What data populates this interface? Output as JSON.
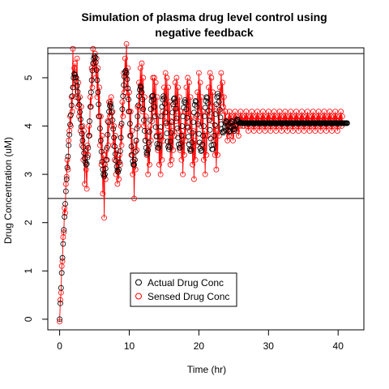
{
  "chart_data": {
    "type": "scatter",
    "title_line1": "Simulation of plasma drug level control using",
    "title_line2": "negative feedback",
    "xlabel": "Time (hr)",
    "ylabel": "Drug Concentration (uM)",
    "xlim": [
      -1.7,
      43.7
    ],
    "ylim": [
      -0.22,
      5.62
    ],
    "x_ticks": [
      0,
      10,
      20,
      30,
      40
    ],
    "y_ticks": [
      0,
      1,
      2,
      3,
      4,
      5
    ],
    "hlines": [
      2.5,
      5.5
    ],
    "legend": {
      "placement": "bottom-center",
      "entries": [
        "Actual Drug Conc",
        "Sensed Drug Conc"
      ]
    },
    "colors": {
      "actual": "#000000",
      "sensed": "#ff0000"
    },
    "series": [
      {
        "name": "Actual Drug Conc",
        "style": "points",
        "x_start": 0,
        "x_step": 0.1,
        "values": [
          0.0,
          0.33,
          0.65,
          0.96,
          1.27,
          1.56,
          1.85,
          2.12,
          2.39,
          2.65,
          2.9,
          3.14,
          3.37,
          3.6,
          3.82,
          4.03,
          4.23,
          4.43,
          4.62,
          4.8,
          5.0,
          5.08,
          5.06,
          5.01,
          4.93,
          4.83,
          4.71,
          4.58,
          4.44,
          4.29,
          4.14,
          3.99,
          3.84,
          3.7,
          3.56,
          3.44,
          3.33,
          3.25,
          3.2,
          3.22,
          3.35,
          3.55,
          3.8,
          4.1,
          4.4,
          4.7,
          4.95,
          5.15,
          5.3,
          5.4,
          5.45,
          5.42,
          5.32,
          5.16,
          4.95,
          4.7,
          4.45,
          4.2,
          3.95,
          3.7,
          3.47,
          3.26,
          3.1,
          3.0,
          2.96,
          3.0,
          3.12,
          3.3,
          3.55,
          3.82,
          4.08,
          4.3,
          4.42,
          4.46,
          4.4,
          4.28,
          4.12,
          3.94,
          3.76,
          3.58,
          3.42,
          3.28,
          3.16,
          3.08,
          3.05,
          3.1,
          3.25,
          3.48,
          3.76,
          4.05,
          4.35,
          4.62,
          4.85,
          5.02,
          5.12,
          5.15,
          5.1,
          4.97,
          4.78,
          4.55,
          4.3,
          4.05,
          3.8,
          3.58,
          3.4,
          3.27,
          3.2,
          3.2,
          3.3,
          3.47,
          3.7,
          3.95,
          4.2,
          4.43,
          4.62,
          4.75,
          4.82,
          4.8,
          4.7,
          4.55,
          4.35,
          4.12,
          3.9,
          3.7,
          3.55,
          3.45,
          3.42,
          3.5,
          3.66,
          3.88,
          4.12,
          4.35,
          4.52,
          4.62,
          4.63,
          4.55,
          4.4,
          4.2,
          3.98,
          3.78,
          3.63,
          3.55,
          3.55,
          3.62,
          3.78,
          3.98,
          4.2,
          4.4,
          4.55,
          4.62,
          4.58,
          4.46,
          4.28,
          4.06,
          3.85,
          3.68,
          3.57,
          3.52,
          3.56,
          3.68,
          3.86,
          4.08,
          4.28,
          4.45,
          4.56,
          4.58,
          4.5,
          4.36,
          4.16,
          3.95,
          3.76,
          3.62,
          3.55,
          3.55,
          3.64,
          3.8,
          4.0,
          4.2,
          4.38,
          4.5,
          4.54,
          4.48,
          4.35,
          4.17,
          3.97,
          3.78,
          3.62,
          3.52,
          3.48,
          3.52,
          3.66,
          3.86,
          4.08,
          4.28,
          4.44,
          4.52,
          4.5,
          4.4,
          4.24,
          4.04,
          3.84,
          3.66,
          3.54,
          3.48,
          3.5,
          3.62,
          3.8,
          4.0,
          4.2,
          4.38,
          4.52,
          4.6,
          4.58,
          4.48,
          4.32,
          4.12,
          3.92,
          3.74,
          3.6,
          3.52,
          3.52,
          3.62,
          3.8,
          4.02,
          4.25,
          4.45,
          4.6,
          4.67,
          4.62,
          4.5,
          4.34,
          4.18,
          4.04,
          3.94,
          3.88,
          3.86,
          3.9,
          3.98,
          4.06,
          4.1,
          4.08,
          4.0,
          3.92,
          3.88,
          3.9,
          3.98,
          4.06,
          4.1,
          4.08,
          4.0,
          3.93,
          3.9,
          3.94,
          4.02,
          4.1,
          4.14,
          4.12,
          4.08,
          4.06,
          4.06,
          4.07,
          4.07,
          4.06,
          4.06,
          4.06,
          4.06,
          4.06,
          4.06,
          4.06,
          4.06,
          4.06,
          4.06,
          4.06,
          4.06,
          4.06,
          4.06,
          4.06,
          4.06,
          4.06,
          4.06,
          4.06,
          4.06,
          4.06,
          4.06,
          4.06,
          4.06,
          4.06,
          4.06,
          4.06,
          4.06,
          4.06,
          4.06,
          4.06,
          4.06,
          4.06,
          4.06,
          4.06,
          4.06,
          4.06,
          4.06,
          4.06,
          4.06,
          4.06,
          4.06,
          4.06,
          4.06,
          4.06,
          4.06,
          4.06,
          4.06,
          4.06,
          4.06,
          4.06,
          4.06,
          4.06,
          4.06,
          4.06,
          4.06,
          4.06,
          4.06,
          4.06,
          4.06,
          4.06,
          4.06,
          4.06,
          4.06,
          4.06,
          4.06,
          4.06,
          4.06,
          4.06,
          4.06,
          4.06,
          4.06,
          4.06,
          4.06,
          4.06,
          4.06,
          4.06,
          4.06,
          4.06,
          4.06,
          4.06,
          4.06,
          4.06,
          4.06,
          4.06,
          4.06,
          4.06,
          4.06,
          4.06,
          4.06,
          4.06,
          4.06,
          4.06,
          4.06,
          4.06,
          4.06,
          4.06,
          4.06,
          4.06,
          4.06,
          4.06,
          4.06,
          4.06,
          4.06,
          4.06,
          4.06,
          4.06,
          4.06,
          4.06,
          4.06,
          4.06,
          4.06,
          4.06,
          4.06,
          4.06,
          4.06,
          4.06,
          4.06,
          4.06,
          4.06,
          4.06,
          4.06,
          4.06,
          4.06,
          4.06,
          4.06,
          4.06,
          4.06,
          4.06,
          4.06,
          4.06,
          4.06,
          4.06,
          4.06,
          4.06,
          4.06,
          4.06,
          4.06,
          4.06,
          4.06,
          4.06,
          4.06,
          4.06,
          4.06,
          4.06,
          4.06,
          4.06,
          4.06,
          4.06,
          4.06,
          4.06,
          4.06
        ]
      },
      {
        "name": "Sensed Drug Conc",
        "style": "points-and-lines",
        "x_start": 0,
        "x_step": 0.1,
        "values": [
          -0.05,
          0.4,
          0.55,
          1.1,
          1.2,
          1.7,
          1.8,
          2.3,
          2.2,
          2.8,
          2.95,
          3.3,
          3.1,
          3.7,
          3.9,
          4.2,
          4.0,
          4.6,
          4.3,
          5.6,
          4.8,
          5.2,
          5.3,
          4.6,
          5.0,
          5.4,
          4.4,
          4.9,
          4.2,
          4.6,
          3.9,
          4.4,
          3.6,
          4.0,
          3.3,
          3.9,
          2.8,
          3.5,
          3.1,
          2.7,
          3.6,
          3.4,
          4.0,
          3.8,
          4.6,
          4.4,
          5.2,
          4.8,
          5.6,
          5.3,
          5.2,
          5.5,
          5.0,
          5.4,
          4.6,
          5.2,
          4.2,
          4.8,
          3.6,
          4.2,
          3.2,
          3.8,
          2.6,
          3.4,
          2.1,
          3.2,
          2.9,
          3.5,
          3.3,
          4.1,
          3.6,
          4.5,
          4.2,
          4.5,
          4.6,
          4.0,
          4.3,
          3.6,
          4.0,
          3.3,
          3.8,
          3.0,
          3.5,
          2.8,
          3.3,
          2.9,
          3.4,
          3.2,
          4.0,
          3.6,
          4.5,
          4.2,
          5.1,
          4.7,
          5.4,
          5.0,
          5.7,
          4.6,
          5.2,
          4.3,
          4.7,
          3.8,
          4.3,
          3.4,
          3.9,
          3.0,
          3.6,
          2.5,
          3.3,
          3.1,
          3.7,
          3.5,
          4.4,
          4.0,
          4.9,
          4.4,
          5.2,
          4.6,
          5.3,
          4.3,
          5.0,
          4.0,
          4.6,
          3.7,
          4.2,
          3.4,
          3.9,
          3.0,
          3.6,
          3.2,
          4.0,
          3.7,
          4.6,
          4.1,
          5.0,
          4.3,
          5.0,
          4.2,
          4.9,
          3.8,
          4.6,
          3.5,
          4.2,
          3.2,
          3.9,
          3.0,
          3.8,
          3.3,
          4.3,
          3.7,
          4.8,
          4.1,
          5.1,
          4.3,
          5.0,
          4.0,
          4.8,
          3.6,
          4.5,
          3.2,
          4.1,
          3.3,
          3.9,
          3.5,
          4.4,
          3.8,
          4.9,
          4.1,
          5.0,
          4.3,
          4.8,
          3.9,
          4.6,
          3.5,
          4.3,
          3.3,
          3.9,
          3.0,
          3.8,
          3.4,
          4.3,
          3.7,
          4.8,
          4.0,
          5.0,
          4.2,
          4.9,
          3.9,
          4.6,
          3.5,
          4.2,
          3.2,
          3.9,
          2.9,
          3.7,
          3.3,
          4.2,
          3.6,
          4.7,
          4.1,
          5.1,
          4.3,
          4.9,
          4.0,
          4.6,
          3.6,
          4.3,
          3.3,
          3.9,
          3.0,
          3.8,
          3.4,
          4.3,
          3.8,
          4.8,
          4.2,
          5.1,
          4.4,
          5.0,
          4.1,
          4.7,
          3.7,
          4.4,
          3.4,
          4.0,
          3.1,
          3.9,
          3.4,
          4.3,
          3.8,
          4.8,
          4.3,
          5.1,
          4.6,
          4.9,
          4.4,
          4.6,
          4.1,
          4.3,
          3.9,
          4.1,
          3.7,
          4.2,
          3.8,
          4.3,
          4.0,
          4.2,
          3.8,
          4.1,
          3.7,
          4.2,
          3.9,
          4.3,
          4.0,
          4.2,
          3.9,
          4.0,
          3.8,
          4.2,
          4.0,
          4.3,
          4.1,
          4.2,
          4.0,
          4.1,
          4.0,
          4.2,
          4.1,
          4.3,
          4.0,
          4.2,
          3.9,
          4.1,
          4.0,
          4.2,
          4.1,
          4.3,
          4.0,
          4.2,
          3.9,
          4.1,
          4.0,
          4.2,
          4.1,
          4.3,
          4.0,
          4.2,
          3.9,
          4.1,
          4.0,
          4.2,
          4.1,
          4.3,
          4.0,
          4.2,
          3.9,
          4.1,
          4.0,
          4.2,
          4.1,
          4.3,
          4.0,
          4.2,
          3.9,
          4.1,
          4.0,
          4.2,
          4.1,
          4.3,
          4.0,
          4.2,
          3.9,
          4.1,
          4.0,
          4.2,
          4.1,
          4.3,
          4.0,
          4.2,
          3.9,
          4.1,
          4.0,
          4.2,
          4.1,
          4.3,
          4.0,
          4.2,
          3.9,
          4.1,
          4.0,
          4.2,
          4.1,
          4.3,
          4.0,
          4.2,
          3.9,
          4.1,
          4.0,
          4.2,
          4.1,
          4.3,
          4.0,
          4.2,
          3.9,
          4.1,
          4.0,
          4.2,
          4.1,
          4.3,
          4.0,
          4.2,
          3.9,
          4.1,
          4.0,
          4.2,
          4.1,
          4.3,
          4.0,
          4.2,
          3.9,
          4.1,
          4.0,
          4.2,
          4.1,
          4.3,
          4.0,
          4.2,
          3.9,
          4.1,
          4.0,
          4.2,
          4.1,
          4.3,
          4.0,
          4.2,
          3.9,
          4.1,
          4.0,
          4.2,
          4.1,
          4.3,
          4.0,
          4.2,
          3.9,
          4.1,
          4.0,
          4.2,
          4.1,
          4.3,
          4.0,
          4.2,
          3.9,
          4.1,
          4.0,
          4.2,
          4.1,
          4.3,
          4.0,
          4.2,
          3.9,
          4.1,
          4.0,
          4.2,
          4.1,
          4.3,
          4.0,
          4.2
        ]
      }
    ]
  }
}
